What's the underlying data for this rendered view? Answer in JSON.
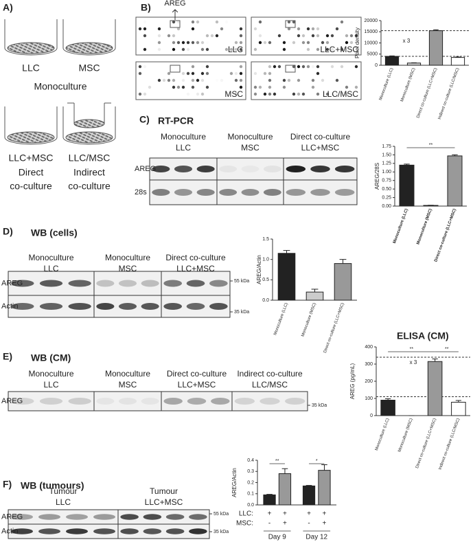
{
  "panels": {
    "A": {
      "label": "A)",
      "top": [
        "LLC",
        "MSC"
      ],
      "top_caption": "Monoculture",
      "bottom": [
        "LLC+MSC",
        "LLC/MSC"
      ],
      "bottom_captions": [
        [
          "Direct",
          "co-culture"
        ],
        [
          "Indirect",
          "co-culture"
        ]
      ]
    },
    "B": {
      "label": "B)",
      "target": "AREG",
      "arrays": [
        "LLC",
        "LLC+MSC",
        "MSC",
        "LLC/MSC"
      ]
    },
    "C": {
      "label": "C)",
      "title": "RT-PCR",
      "headers": [
        [
          "Monoculture",
          "LLC"
        ],
        [
          "Monoculture",
          "MSC"
        ],
        [
          "Direct co-culture",
          "LLC+MSC"
        ]
      ],
      "rows": [
        "AREG",
        "28s"
      ]
    },
    "D": {
      "label": "D)",
      "title": "WB (cells)",
      "headers": [
        [
          "Monoculture",
          "LLC"
        ],
        [
          "Monoculture",
          "MSC"
        ],
        [
          "Direct co-culture",
          "LLC+MSC"
        ]
      ],
      "rows": [
        "AREG",
        "Actin"
      ],
      "markers": [
        "55 kDa",
        "35 kDa"
      ]
    },
    "E": {
      "label": "E)",
      "title": "WB (CM)",
      "headers": [
        [
          "Monoculture",
          "LLC"
        ],
        [
          "Monoculture",
          "MSC"
        ],
        [
          "Direct co-culture",
          "LLC+MSC"
        ],
        [
          "Indirect co-culture",
          "LLC/MSC"
        ]
      ],
      "rows": [
        "AREG"
      ],
      "markers": [
        "35 kDa"
      ]
    },
    "F": {
      "label": "F)",
      "title": "WB (tumours)",
      "headers": [
        [
          "Tumour",
          "LLC"
        ],
        [
          "Tumour",
          "LLC+MSC"
        ]
      ],
      "rows": [
        "AREG",
        "Actin"
      ],
      "markers": [
        "55 kDa",
        "35 kDa"
      ]
    }
  },
  "chart_data": [
    {
      "type": "bar",
      "y_label": "Pixel density",
      "categories": [
        "Monoculture (LLC)",
        "Monoculture (MSC)",
        "Direct co-culture (LLC+MSC)",
        "Indirect co-culture (LLC/MSC)"
      ],
      "values": [
        4000,
        1000,
        15500,
        3500
      ],
      "errors": [
        200,
        100,
        400,
        200
      ],
      "colors": [
        "#222222",
        "#cccccc",
        "#999999",
        "#ffffff"
      ],
      "ylim": [
        0,
        20000
      ],
      "yticks": [
        0,
        5000,
        10000,
        15000,
        20000
      ],
      "reference_lines": [
        15500,
        4000
      ],
      "annotations": [
        "x 3"
      ]
    },
    {
      "type": "bar",
      "y_label": "AREG/28S",
      "categories": [
        "Monoculture (LLC)",
        "Monoculture (MSC)",
        "Direct co-culture (LLC+MSC)"
      ],
      "values": [
        1.2,
        0.02,
        1.47
      ],
      "errors": [
        0.03,
        0.005,
        0.03
      ],
      "colors": [
        "#222222",
        "#cccccc",
        "#999999"
      ],
      "ylim": [
        0,
        1.75
      ],
      "yticks": [
        {
          "value": 0,
          "label": "0.00"
        },
        {
          "value": 0.25,
          "label": "0.25"
        },
        {
          "value": 0.5,
          "label": "0.50"
        },
        {
          "value": 0.75,
          "label": "0.75"
        },
        {
          "value": 1,
          "label": "1.00"
        },
        {
          "value": 1.25,
          "label": "1.25"
        },
        {
          "value": 1.5,
          "label": "1.50"
        },
        {
          "value": 1.75,
          "label": "1.75"
        }
      ],
      "annotations": [
        "**"
      ]
    },
    {
      "type": "bar",
      "y_label": "AREG/Actin",
      "categories": [
        "Monoculture (LLC)",
        "Monoculture (MSC)",
        "Direct co-culture (LLC+MSC)"
      ],
      "values": [
        1.15,
        0.2,
        0.9
      ],
      "errors": [
        0.07,
        0.07,
        0.1
      ],
      "colors": [
        "#222222",
        "#cccccc",
        "#999999"
      ],
      "ylim": [
        0,
        1.5
      ],
      "yticks": [
        {
          "value": 0,
          "label": "0.0"
        },
        {
          "value": 0.5,
          "label": "0.5"
        },
        {
          "value": 1,
          "label": "1.0"
        },
        {
          "value": 1.5,
          "label": "1.5"
        }
      ]
    },
    {
      "type": "bar",
      "title": "ELISA (CM)",
      "y_label": "AREG (pg/mL)",
      "categories": [
        "Monoculture (LLC)",
        "Monoculture (MSC)",
        "Direct co-culture (LLC+MSC)",
        "Indirect co-culture (LLC/MSC)"
      ],
      "values": [
        90,
        0,
        315,
        78
      ],
      "errors": [
        8,
        0,
        15,
        10
      ],
      "colors": [
        "#222222",
        "#cccccc",
        "#999999",
        "#ffffff"
      ],
      "ylim": [
        0,
        400
      ],
      "yticks": [
        0,
        100,
        200,
        300,
        400
      ],
      "reference_lines": [
        340,
        110
      ],
      "annotations": [
        "**",
        "**",
        "x 3"
      ]
    },
    {
      "type": "grouped_bar",
      "y_label": "AREG/Actin",
      "categories": [
        "Day 9",
        "Day 12"
      ],
      "series": [
        {
          "color": "#222222",
          "values": [
            0.09,
            0.17
          ],
          "errors": [
            0.005,
            0.005
          ]
        },
        {
          "color": "#999999",
          "values": [
            0.28,
            0.31
          ],
          "errors": [
            0.045,
            0.05
          ]
        }
      ],
      "ylim": [
        0,
        0.4
      ],
      "yticks": [
        {
          "value": 0,
          "label": "0.0"
        },
        {
          "value": 0.1,
          "label": "0.1"
        },
        {
          "value": 0.2,
          "label": "0.2"
        },
        {
          "value": 0.3,
          "label": "0.3"
        },
        {
          "value": 0.4,
          "label": "0.4"
        }
      ],
      "annotations": [
        "**",
        "*"
      ],
      "conditions": [
        {
          "label": "LLC:",
          "values": [
            "+",
            "+",
            "+",
            "+"
          ]
        },
        {
          "label": "MSC:",
          "values": [
            "-",
            "+",
            "-",
            "+"
          ]
        }
      ]
    }
  ]
}
